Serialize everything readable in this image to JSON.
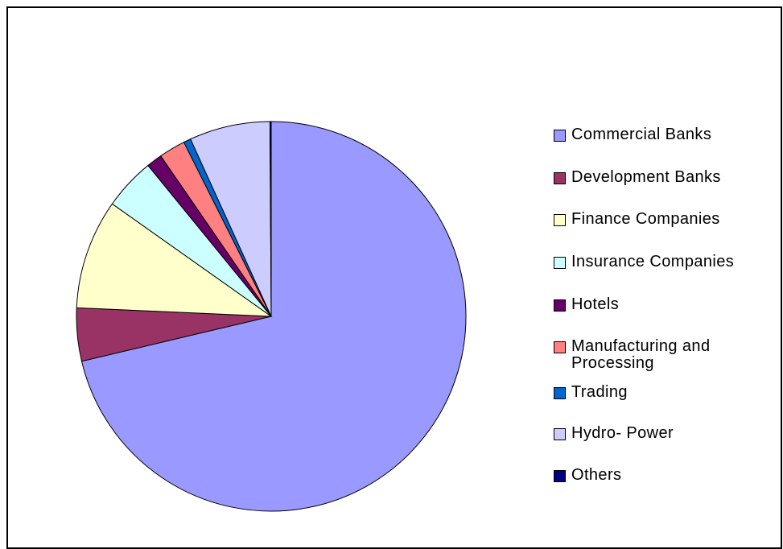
{
  "chart_data": {
    "type": "pie",
    "categories": [
      "Commercial Banks",
      "Development Banks",
      "Finance Companies",
      "Insurance Companies",
      "Hotels",
      "Manufacturing and Processing",
      "Trading",
      "Hydro- Power",
      "Others"
    ],
    "values": [
      71.3,
      4.4,
      9.1,
      4.3,
      1.3,
      2.2,
      0.6,
      6.7,
      0.1
    ],
    "colors": [
      "#9999ff",
      "#993366",
      "#ffffcc",
      "#ccffff",
      "#660066",
      "#ff8080",
      "#0066cc",
      "#ccccff",
      "#000080"
    ],
    "legend": "right"
  }
}
